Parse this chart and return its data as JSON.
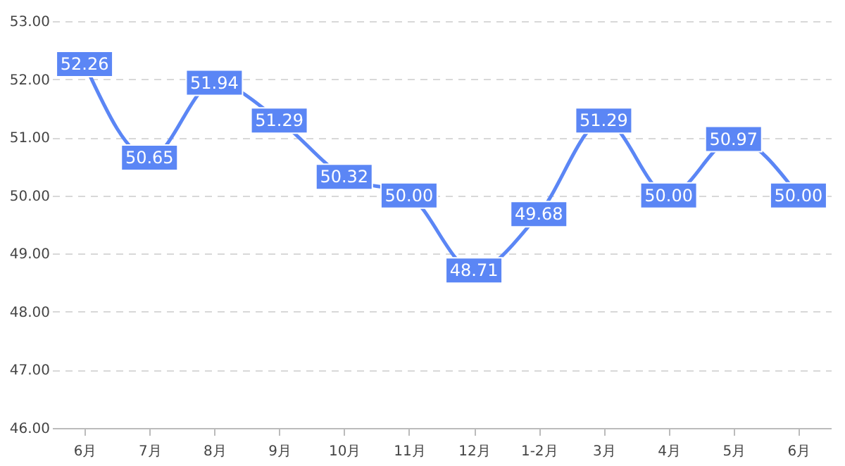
{
  "chart_data": {
    "type": "line",
    "categories": [
      "6月",
      "7月",
      "8月",
      "9月",
      "10月",
      "11月",
      "12月",
      "1-2月",
      "3月",
      "4月",
      "5月",
      "6月"
    ],
    "series": [
      {
        "color": "#5b86f5",
        "values": [
          52.26,
          50.65,
          51.94,
          51.29,
          50.32,
          50.0,
          48.71,
          49.68,
          51.29,
          50.0,
          50.97,
          50.0
        ],
        "value_labels": [
          "52.26",
          "50.65",
          "51.94",
          "51.29",
          "50.32",
          "50.00",
          "48.71",
          "49.68",
          "51.29",
          "50.00",
          "50.97",
          "50.00"
        ]
      }
    ],
    "ylim": [
      46,
      53
    ],
    "yticks": [
      {
        "value": 46,
        "label": "46.00"
      },
      {
        "value": 47,
        "label": "47.00"
      },
      {
        "value": 48,
        "label": "48.00"
      },
      {
        "value": 49,
        "label": "49.00"
      },
      {
        "value": 50,
        "label": "50.00"
      },
      {
        "value": 51,
        "label": "51.00"
      },
      {
        "value": 52,
        "label": "52.00"
      },
      {
        "value": 53,
        "label": "53.00"
      }
    ],
    "grid": "y",
    "marker": "square",
    "line_style": "solid"
  }
}
